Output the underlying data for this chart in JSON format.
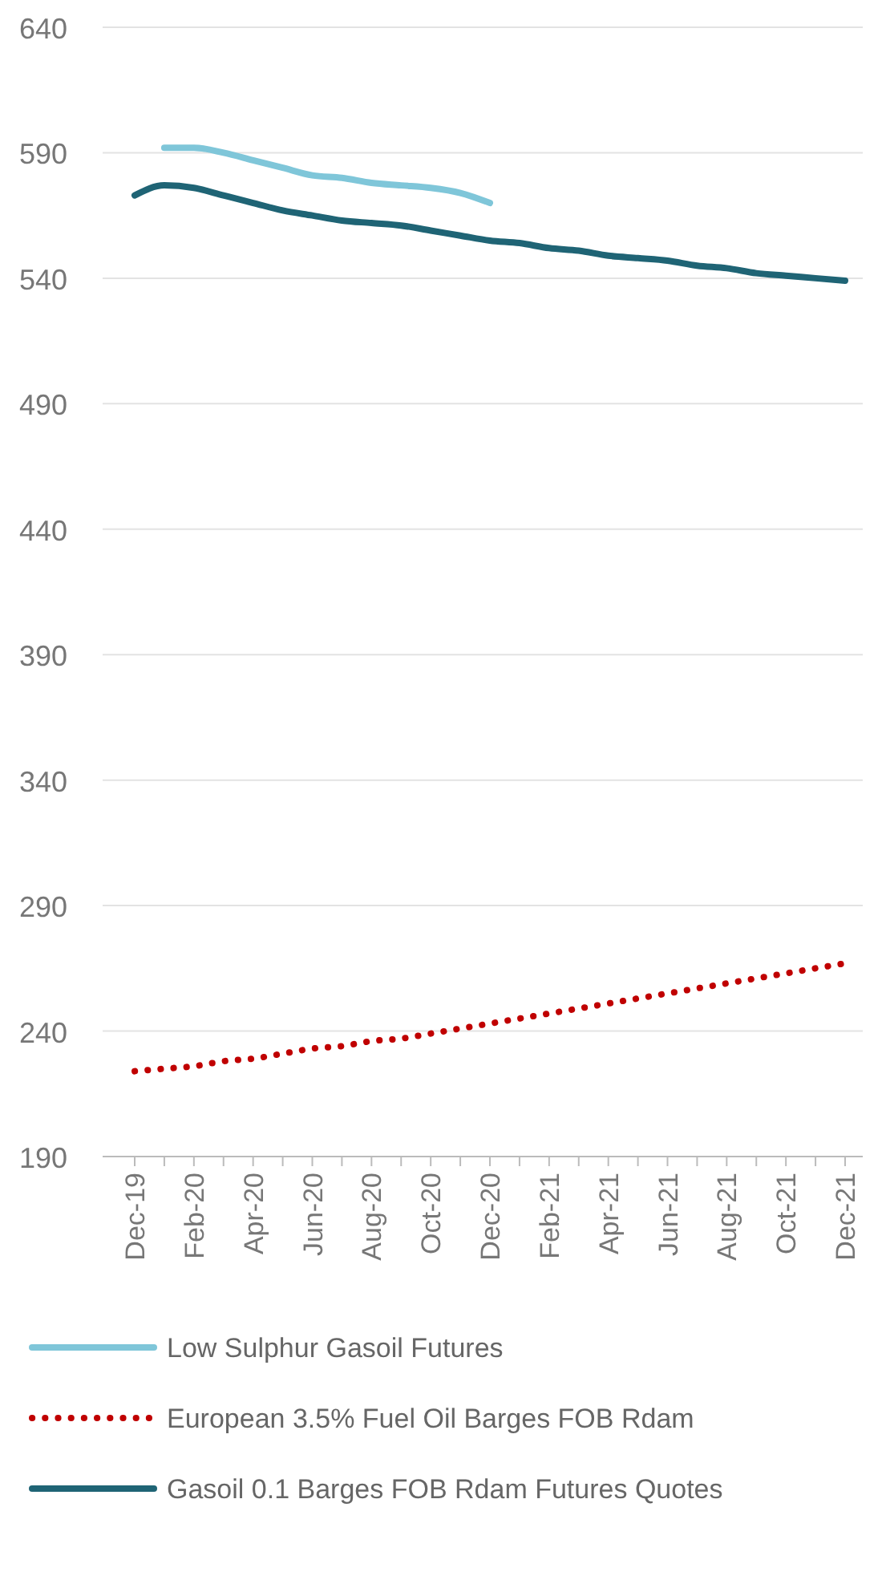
{
  "chart_data": {
    "type": "line",
    "categories": [
      "Dec-19",
      null,
      "Feb-20",
      null,
      "Apr-20",
      null,
      "Jun-20",
      null,
      "Aug-20",
      null,
      "Oct-20",
      null,
      "Dec-20",
      null,
      "Feb-21",
      null,
      "Apr-21",
      null,
      "Jun-21",
      null,
      "Aug-21",
      null,
      "Oct-21",
      null,
      "Dec-21"
    ],
    "ylim": [
      190,
      640
    ],
    "yticks": [
      190,
      240,
      290,
      340,
      390,
      440,
      490,
      540,
      590,
      640
    ],
    "grid": "y",
    "legend": "bottom",
    "series": [
      {
        "name": "Low Sulphur Gasoil Futures",
        "color": "#7fc6d9",
        "line_style": "solid",
        "values": [
          null,
          592,
          592,
          590,
          587,
          584,
          581,
          580,
          578,
          577,
          576,
          574,
          570,
          null,
          null,
          null,
          null,
          null,
          null,
          null,
          null,
          null,
          null,
          null,
          null
        ]
      },
      {
        "name": "European 3.5% Fuel Oil Barges FOB Rdam",
        "color": "#c00000",
        "line_style": "dotted",
        "values": [
          224,
          225,
          226,
          228,
          229,
          231,
          233,
          234,
          236,
          237,
          239,
          241,
          243,
          245,
          247,
          249,
          251,
          253,
          255,
          257,
          259,
          261,
          263,
          265,
          267
        ]
      },
      {
        "name": "Gasoil 0.1 Barges FOB Rdam Futures Quotes",
        "color": "#1f6475",
        "line_style": "solid",
        "values": [
          573,
          577,
          576,
          573,
          570,
          567,
          565,
          563,
          562,
          561,
          559,
          557,
          555,
          554,
          552,
          551,
          549,
          548,
          547,
          545,
          544,
          542,
          541,
          540,
          539
        ]
      }
    ]
  }
}
